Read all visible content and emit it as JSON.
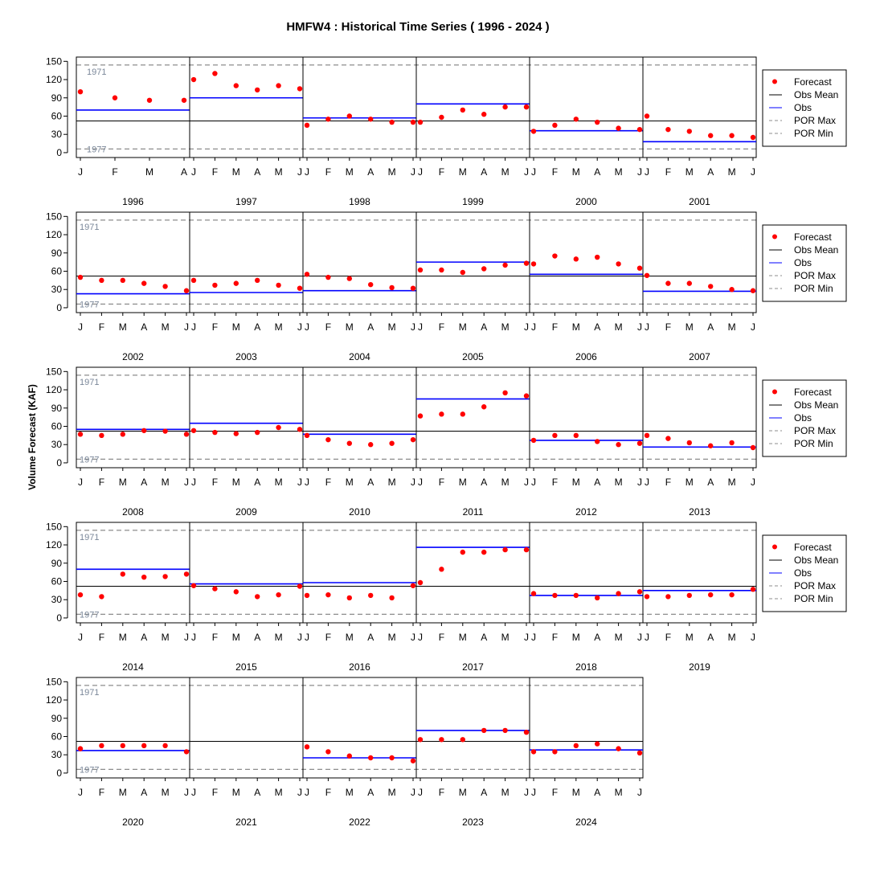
{
  "chart_data": {
    "type": "scatter",
    "title": "HMFW4 : Historical Time Series ( 1996 - 2024 )",
    "ylabel": "Volume Forecast (KAF)",
    "ylim": [
      -8,
      157
    ],
    "yticks": [
      0,
      30,
      60,
      90,
      120,
      150
    ],
    "grid": false,
    "obs_mean": 52,
    "por_max": {
      "value": 144,
      "label": "1971"
    },
    "por_min": {
      "value": 6,
      "label": "1977"
    },
    "legend": {
      "position": "right",
      "entries": [
        "Forecast",
        "Obs Mean",
        "Obs",
        "POR Max",
        "POR Min"
      ]
    },
    "colors": {
      "forecast": "#ff0000",
      "obs": "#0000ff",
      "obs_mean": "#000000",
      "por": "#8c8c8c",
      "annotation": "#7a8799"
    },
    "years": [
      {
        "year": "1996",
        "months": [
          "J",
          "F",
          "M",
          "A"
        ],
        "forecast": [
          100,
          90,
          86,
          86
        ],
        "obs": 70
      },
      {
        "year": "1997",
        "months": [
          "J",
          "F",
          "M",
          "A",
          "M",
          "J"
        ],
        "forecast": [
          120,
          130,
          110,
          103,
          110,
          105
        ],
        "obs": 90
      },
      {
        "year": "1998",
        "months": [
          "J",
          "F",
          "M",
          "A",
          "M",
          "J"
        ],
        "forecast": [
          45,
          55,
          60,
          55,
          50,
          50
        ],
        "obs": 57
      },
      {
        "year": "1999",
        "months": [
          "J",
          "F",
          "M",
          "A",
          "M",
          "J"
        ],
        "forecast": [
          50,
          58,
          70,
          63,
          75,
          75
        ],
        "obs": 80
      },
      {
        "year": "2000",
        "months": [
          "J",
          "F",
          "M",
          "A",
          "M",
          "J"
        ],
        "forecast": [
          35,
          45,
          55,
          50,
          40,
          38
        ],
        "obs": 36
      },
      {
        "year": "2001",
        "months": [
          "J",
          "F",
          "M",
          "A",
          "M",
          "J"
        ],
        "forecast": [
          60,
          38,
          35,
          28,
          28,
          25
        ],
        "obs": 18
      },
      {
        "year": "2002",
        "months": [
          "J",
          "F",
          "M",
          "A",
          "M",
          "J"
        ],
        "forecast": [
          50,
          45,
          45,
          40,
          35,
          28
        ],
        "obs": 23
      },
      {
        "year": "2003",
        "months": [
          "J",
          "F",
          "M",
          "A",
          "M",
          "J"
        ],
        "forecast": [
          45,
          37,
          40,
          45,
          37,
          32
        ],
        "obs": 25
      },
      {
        "year": "2004",
        "months": [
          "J",
          "F",
          "M",
          "A",
          "M",
          "J"
        ],
        "forecast": [
          55,
          50,
          48,
          38,
          33,
          32
        ],
        "obs": 28
      },
      {
        "year": "2005",
        "months": [
          "J",
          "F",
          "M",
          "A",
          "M",
          "J"
        ],
        "forecast": [
          62,
          62,
          58,
          64,
          70,
          73
        ],
        "obs": 75
      },
      {
        "year": "2006",
        "months": [
          "J",
          "F",
          "M",
          "A",
          "M",
          "J"
        ],
        "forecast": [
          72,
          85,
          80,
          83,
          72,
          65
        ],
        "obs": 55
      },
      {
        "year": "2007",
        "months": [
          "J",
          "F",
          "M",
          "A",
          "M",
          "J"
        ],
        "forecast": [
          53,
          40,
          40,
          35,
          30,
          28
        ],
        "obs": 27
      },
      {
        "year": "2008",
        "months": [
          "J",
          "F",
          "M",
          "A",
          "M",
          "J"
        ],
        "forecast": [
          47,
          45,
          47,
          53,
          52,
          47
        ],
        "obs": 55
      },
      {
        "year": "2009",
        "months": [
          "J",
          "F",
          "M",
          "A",
          "M",
          "J"
        ],
        "forecast": [
          53,
          50,
          48,
          50,
          58,
          55
        ],
        "obs": 65
      },
      {
        "year": "2010",
        "months": [
          "J",
          "F",
          "M",
          "A",
          "M",
          "J"
        ],
        "forecast": [
          45,
          38,
          32,
          30,
          32,
          38
        ],
        "obs": 47
      },
      {
        "year": "2011",
        "months": [
          "J",
          "F",
          "M",
          "A",
          "M",
          "J"
        ],
        "forecast": [
          77,
          80,
          80,
          92,
          115,
          110
        ],
        "obs": 105
      },
      {
        "year": "2012",
        "months": [
          "J",
          "F",
          "M",
          "A",
          "M",
          "J"
        ],
        "forecast": [
          37,
          45,
          45,
          35,
          30,
          32
        ],
        "obs": 37
      },
      {
        "year": "2013",
        "months": [
          "J",
          "F",
          "M",
          "A",
          "M",
          "J"
        ],
        "forecast": [
          45,
          40,
          33,
          28,
          33,
          25
        ],
        "obs": 26
      },
      {
        "year": "2014",
        "months": [
          "J",
          "F",
          "M",
          "A",
          "M",
          "J"
        ],
        "forecast": [
          38,
          35,
          72,
          67,
          68,
          72
        ],
        "obs": 80
      },
      {
        "year": "2015",
        "months": [
          "J",
          "F",
          "M",
          "A",
          "M",
          "J"
        ],
        "forecast": [
          53,
          48,
          43,
          35,
          38,
          52
        ],
        "obs": 56
      },
      {
        "year": "2016",
        "months": [
          "J",
          "F",
          "M",
          "A",
          "M",
          "J"
        ],
        "forecast": [
          37,
          38,
          33,
          37,
          33,
          53
        ],
        "obs": 58
      },
      {
        "year": "2017",
        "months": [
          "J",
          "F",
          "M",
          "A",
          "M",
          "J"
        ],
        "forecast": [
          58,
          80,
          108,
          108,
          112,
          112
        ],
        "obs": 116
      },
      {
        "year": "2018",
        "months": [
          "J",
          "F",
          "M",
          "A",
          "M",
          "J"
        ],
        "forecast": [
          40,
          37,
          37,
          33,
          40,
          43
        ],
        "obs": 37
      },
      {
        "year": "2019",
        "months": [
          "J",
          "F",
          "M",
          "A",
          "M",
          "J"
        ],
        "forecast": [
          35,
          35,
          37,
          38,
          38,
          47
        ],
        "obs": 45
      },
      {
        "year": "2020",
        "months": [
          "J",
          "F",
          "M",
          "A",
          "M",
          "J"
        ],
        "forecast": [
          40,
          45,
          45,
          45,
          45,
          35
        ],
        "obs": 37
      },
      {
        "year": "2021",
        "months": [
          "J",
          "F",
          "M",
          "A",
          "M",
          "J"
        ],
        "forecast": [],
        "obs": null
      },
      {
        "year": "2022",
        "months": [
          "J",
          "F",
          "M",
          "A",
          "M",
          "J"
        ],
        "forecast": [
          43,
          35,
          28,
          25,
          25,
          20
        ],
        "obs": 25
      },
      {
        "year": "2023",
        "months": [
          "J",
          "F",
          "M",
          "A",
          "M",
          "J"
        ],
        "forecast": [
          55,
          55,
          55,
          70,
          70,
          67
        ],
        "obs": 70
      },
      {
        "year": "2024",
        "months": [
          "J",
          "F",
          "M",
          "A",
          "M",
          "J"
        ],
        "forecast": [
          35,
          35,
          45,
          48,
          40,
          33
        ],
        "obs": 38
      }
    ]
  }
}
